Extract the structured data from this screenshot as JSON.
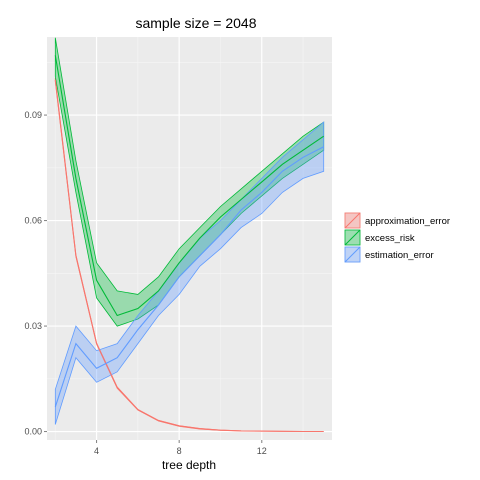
{
  "chart_data": {
    "type": "area",
    "title": "sample size = 2048",
    "xlabel": "tree depth",
    "ylabel": "",
    "xlim": [
      1.6,
      15.4
    ],
    "ylim": [
      -0.0024,
      0.1122
    ],
    "x_ticks": [
      4,
      8,
      12
    ],
    "x_tick_labels": [
      "4",
      "8",
      "12"
    ],
    "y_ticks": [
      0.0,
      0.03,
      0.06,
      0.09
    ],
    "y_tick_labels": [
      "0.00",
      "0.03",
      "0.06",
      "0.09"
    ],
    "grid": true,
    "legend_position": "right",
    "series": [
      {
        "name": "approximation_error",
        "color": "#F8766D",
        "x": [
          2,
          3,
          4,
          5,
          6,
          7,
          8,
          9,
          10,
          11,
          12,
          13,
          14,
          15
        ],
        "mean": [
          0.1,
          0.05,
          0.025,
          0.0125,
          0.0062,
          0.0031,
          0.0016,
          0.0008,
          0.0004,
          0.0002,
          0.00012,
          6e-05,
          3e-05,
          2e-05
        ],
        "lower": [
          0.0995,
          0.0497,
          0.0248,
          0.0123,
          0.0061,
          0.003,
          0.0015,
          0.0007,
          0.00035,
          0.00018,
          0.0001,
          5e-05,
          2e-05,
          1e-05
        ],
        "upper": [
          0.1005,
          0.0503,
          0.0252,
          0.0127,
          0.0063,
          0.0032,
          0.0017,
          0.0009,
          0.00045,
          0.00022,
          0.00014,
          7e-05,
          4e-05,
          3e-05
        ]
      },
      {
        "name": "excess_risk",
        "color": "#00BA38",
        "x": [
          2,
          3,
          4,
          5,
          6,
          7,
          8,
          9,
          10,
          11,
          12,
          13,
          14,
          15
        ],
        "mean": [
          0.107,
          0.072,
          0.043,
          0.033,
          0.035,
          0.04,
          0.048,
          0.055,
          0.061,
          0.066,
          0.071,
          0.076,
          0.08,
          0.084
        ],
        "lower": [
          0.101,
          0.068,
          0.038,
          0.03,
          0.032,
          0.036,
          0.044,
          0.05,
          0.056,
          0.062,
          0.067,
          0.072,
          0.076,
          0.08
        ],
        "upper": [
          0.112,
          0.077,
          0.048,
          0.04,
          0.039,
          0.044,
          0.052,
          0.058,
          0.064,
          0.069,
          0.074,
          0.079,
          0.084,
          0.088
        ]
      },
      {
        "name": "estimation_error",
        "color": "#619CFF",
        "x": [
          2,
          3,
          4,
          5,
          6,
          7,
          8,
          9,
          10,
          11,
          12,
          13,
          14,
          15
        ],
        "mean": [
          0.007,
          0.025,
          0.018,
          0.021,
          0.029,
          0.036,
          0.044,
          0.05,
          0.056,
          0.063,
          0.068,
          0.074,
          0.078,
          0.081
        ],
        "lower": [
          0.002,
          0.021,
          0.014,
          0.017,
          0.025,
          0.033,
          0.039,
          0.047,
          0.052,
          0.058,
          0.062,
          0.068,
          0.072,
          0.074
        ],
        "upper": [
          0.012,
          0.03,
          0.023,
          0.025,
          0.033,
          0.04,
          0.048,
          0.055,
          0.06,
          0.066,
          0.072,
          0.078,
          0.083,
          0.088
        ]
      }
    ]
  },
  "colors": {
    "panel_background": "#EBEBEB",
    "grid_major": "#FFFFFF",
    "grid_minor": "#F5F5F5",
    "legend_key_background": "#F2F2F2"
  }
}
